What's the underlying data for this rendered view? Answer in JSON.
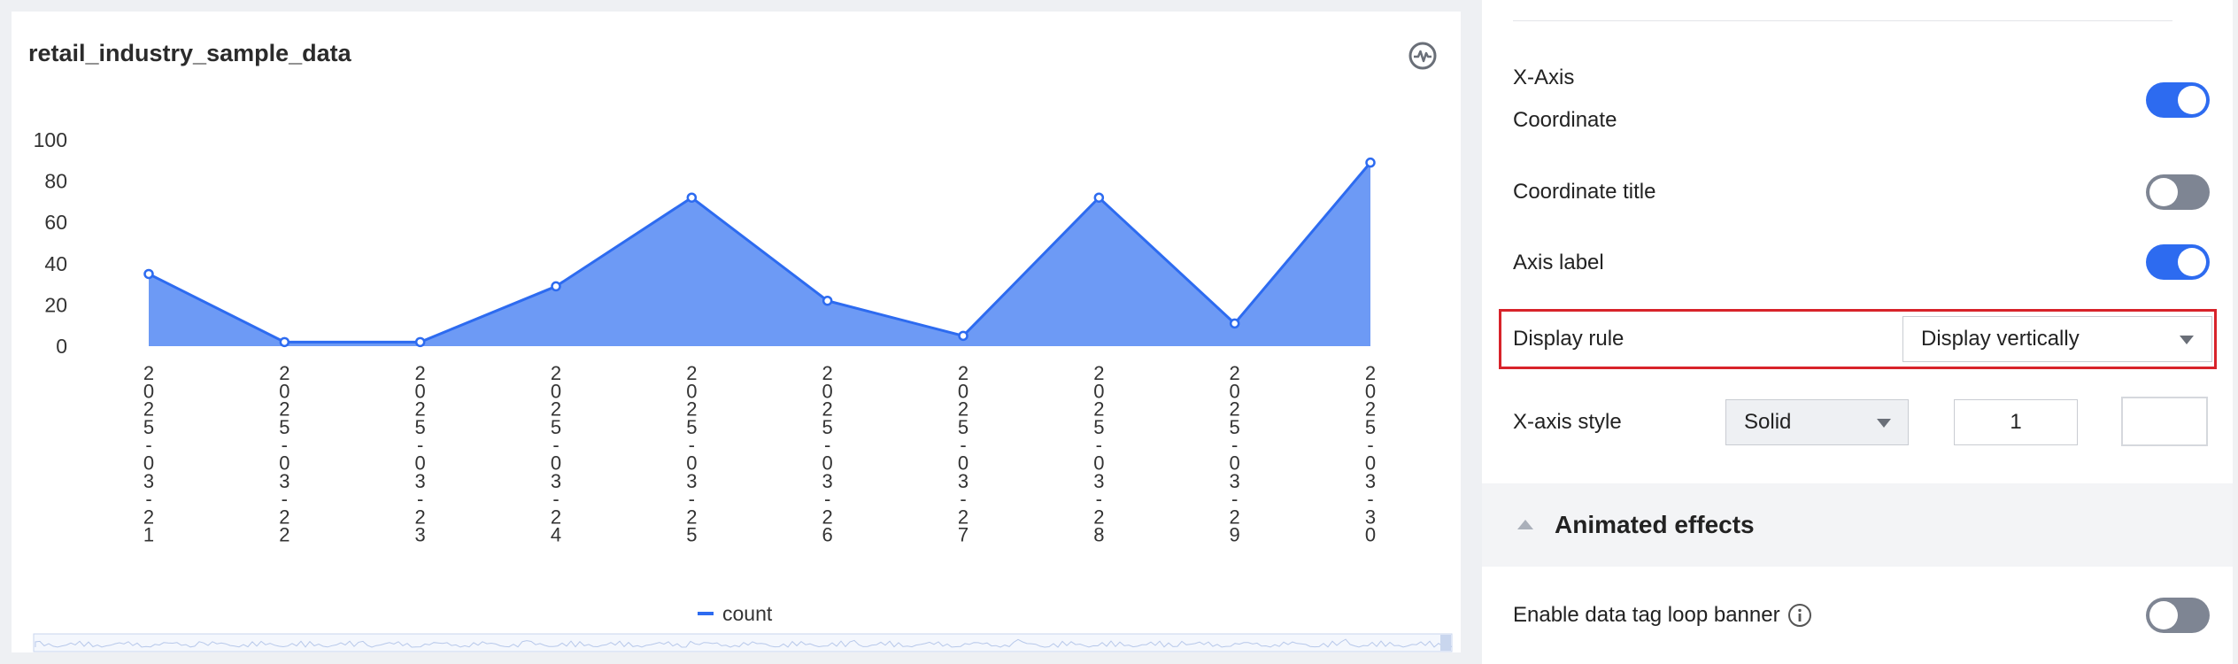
{
  "chart_card": {
    "title": "retail_industry_sample_data",
    "pulse_icon": "pulse-icon"
  },
  "chart_data": {
    "type": "area",
    "title": "retail_industry_sample_data",
    "categories": [
      "2025-03-21",
      "2025-03-22",
      "2025-03-23",
      "2025-03-24",
      "2025-03-25",
      "2025-03-26",
      "2025-03-27",
      "2025-03-28",
      "2025-03-29",
      "2025-03-30"
    ],
    "series": [
      {
        "name": "count",
        "values": [
          35,
          2,
          2,
          29,
          72,
          22,
          5,
          72,
          11,
          89
        ],
        "color": "#2d6bf0",
        "fill": "#6d9af5"
      }
    ],
    "y_ticks": [
      "0",
      "20",
      "40",
      "60",
      "80",
      "100"
    ],
    "ylim": [
      0,
      100
    ],
    "x_label_rule": "vertical",
    "legend_position": "bottom-center",
    "grid": false
  },
  "settings": {
    "x_axis_label_line1": "X-Axis",
    "x_axis_label_line2": "Coordinate",
    "x_axis_toggle": true,
    "coordinate_title_label": "Coordinate title",
    "coordinate_title_toggle": false,
    "axis_label_label": "Axis label",
    "axis_label_toggle": true,
    "display_rule_label": "Display rule",
    "display_rule_value": "Display vertically",
    "x_axis_style_label": "X-axis style",
    "x_axis_style_value": "Solid",
    "x_axis_width_value": "1",
    "animated_effects_title": "Animated effects",
    "loop_banner_label": "Enable data tag loop banner",
    "loop_banner_toggle": false
  },
  "colors": {
    "accent": "#2d6bf0",
    "highlight_border": "#d8232a",
    "toggle_off": "#7e8593"
  }
}
